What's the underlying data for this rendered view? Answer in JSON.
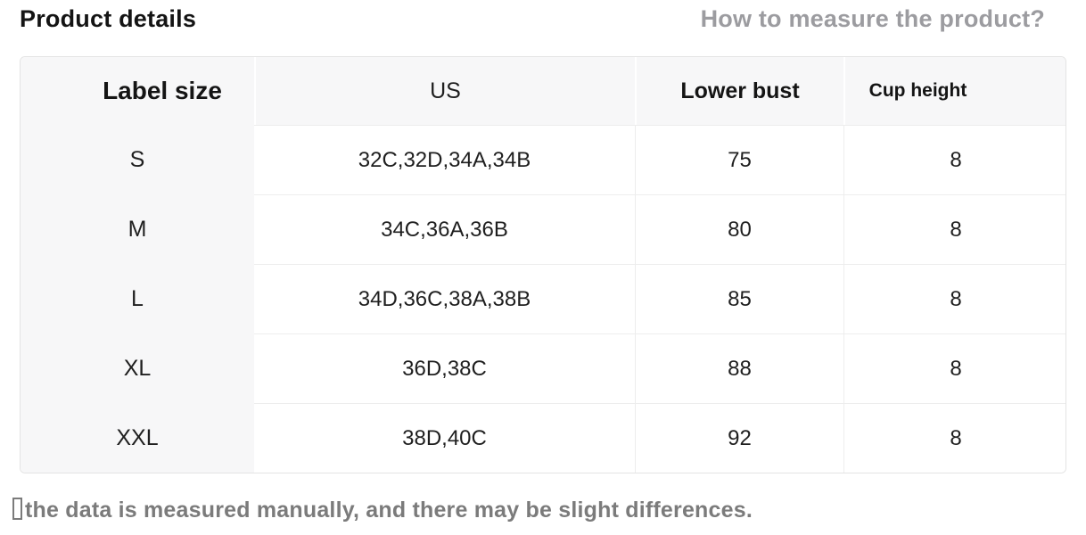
{
  "page": {
    "title": "Product details",
    "howto_link": "How to measure the product?",
    "note": {
      "glyph": "□",
      "text": "the data is measured manually, and there may be slight differences."
    }
  },
  "table": {
    "columns": [
      {
        "label": "Label size"
      },
      {
        "label": "US"
      },
      {
        "label": "Lower bust"
      },
      {
        "label": "Cup height"
      }
    ],
    "rows": [
      {
        "label_size": "S",
        "us": "32C,32D,34A,34B",
        "lower_bust": "75",
        "cup_height": "8"
      },
      {
        "label_size": "M",
        "us": "34C,36A,36B",
        "lower_bust": "80",
        "cup_height": "8"
      },
      {
        "label_size": "L",
        "us": "34D,36C,38A,38B",
        "lower_bust": "85",
        "cup_height": "8"
      },
      {
        "label_size": "XL",
        "us": "36D,38C",
        "lower_bust": "88",
        "cup_height": "8"
      },
      {
        "label_size": "XXL",
        "us": "38D,40C",
        "lower_bust": "92",
        "cup_height": "8"
      }
    ]
  },
  "colors": {
    "title_text": "#141414",
    "muted_link_text": "#9c9ca0",
    "note_text": "#7b7b7b",
    "header_and_label_column_bg": "#f7f7f8",
    "table_border": "#e4e4e4",
    "row_divider": "#ededed"
  }
}
